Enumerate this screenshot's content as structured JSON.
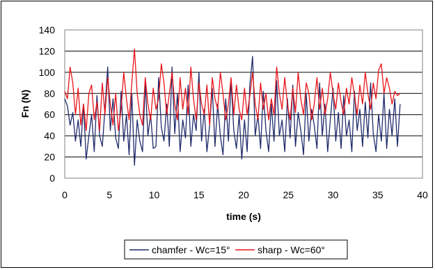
{
  "chart_data": {
    "type": "line",
    "title": "",
    "xlabel": "time (s)",
    "ylabel": "Fn (N)",
    "xlim": [
      0,
      40
    ],
    "ylim": [
      0,
      140
    ],
    "x_ticks": [
      0,
      5,
      10,
      15,
      20,
      25,
      30,
      35,
      40
    ],
    "y_ticks": [
      0,
      20,
      40,
      60,
      80,
      100,
      120,
      140
    ],
    "grid": "horizontal",
    "legend_position": "bottom",
    "series": [
      {
        "name": "chamfer - Wc=15°",
        "color": "#1f2a6b",
        "x": [
          0,
          0.3,
          0.6,
          0.9,
          1.2,
          1.5,
          1.8,
          2.1,
          2.4,
          2.7,
          3.0,
          3.3,
          3.6,
          3.9,
          4.2,
          4.5,
          4.8,
          5.1,
          5.4,
          5.7,
          6.0,
          6.3,
          6.6,
          6.9,
          7.2,
          7.5,
          7.8,
          8.1,
          8.4,
          8.7,
          9.0,
          9.3,
          9.6,
          9.9,
          10.2,
          10.5,
          10.8,
          11.1,
          11.4,
          11.7,
          12.0,
          12.3,
          12.6,
          12.9,
          13.2,
          13.5,
          13.8,
          14.1,
          14.4,
          14.7,
          15.0,
          15.3,
          15.6,
          15.9,
          16.2,
          16.5,
          16.8,
          17.1,
          17.4,
          17.7,
          18.0,
          18.3,
          18.6,
          18.9,
          19.2,
          19.5,
          19.8,
          20.1,
          20.4,
          20.7,
          21.0,
          21.3,
          21.6,
          21.9,
          22.2,
          22.5,
          22.8,
          23.1,
          23.4,
          23.7,
          24.0,
          24.3,
          24.6,
          24.9,
          25.2,
          25.5,
          25.8,
          26.1,
          26.4,
          26.7,
          27.0,
          27.3,
          27.6,
          27.9,
          28.2,
          28.5,
          28.8,
          29.1,
          29.4,
          29.7,
          30.0,
          30.3,
          30.6,
          30.9,
          31.2,
          31.5,
          31.8,
          32.1,
          32.4,
          32.7,
          33.0,
          33.3,
          33.6,
          33.9,
          34.2,
          34.5,
          34.8,
          35.1,
          35.4,
          35.7,
          36.0,
          36.3,
          36.6,
          36.9,
          37.2,
          37.5
        ],
        "y": [
          75,
          68,
          50,
          62,
          35,
          55,
          30,
          70,
          18,
          40,
          60,
          25,
          78,
          40,
          30,
          65,
          105,
          45,
          75,
          38,
          28,
          82,
          35,
          60,
          22,
          80,
          12,
          55,
          35,
          25,
          90,
          40,
          60,
          28,
          30,
          95,
          48,
          35,
          70,
          30,
          105,
          42,
          80,
          25,
          55,
          38,
          88,
          30,
          60,
          45,
          100,
          35,
          65,
          25,
          50,
          85,
          30,
          70,
          40,
          22,
          75,
          35,
          92,
          45,
          28,
          60,
          18,
          55,
          25,
          88,
          115,
          40,
          60,
          28,
          82,
          45,
          25,
          70,
          35,
          92,
          40,
          55,
          25,
          75,
          38,
          88,
          30,
          62,
          45,
          22,
          80,
          35,
          65,
          50,
          28,
          90,
          40,
          70,
          25,
          55,
          85,
          35,
          62,
          28,
          78,
          40,
          55,
          25,
          82,
          45,
          65,
          30,
          72,
          38,
          90,
          42,
          25,
          60,
          35,
          80,
          28,
          65,
          40,
          75,
          30,
          70
        ]
      },
      {
        "name": "sharp - Wc=60°",
        "color": "#e8141a",
        "x": [
          0,
          0.3,
          0.6,
          0.9,
          1.2,
          1.5,
          1.8,
          2.1,
          2.4,
          2.7,
          3.0,
          3.3,
          3.6,
          3.9,
          4.2,
          4.5,
          4.8,
          5.1,
          5.4,
          5.7,
          6.0,
          6.3,
          6.6,
          6.9,
          7.2,
          7.5,
          7.8,
          8.1,
          8.4,
          8.7,
          9.0,
          9.3,
          9.6,
          9.9,
          10.2,
          10.5,
          10.8,
          11.1,
          11.4,
          11.7,
          12.0,
          12.3,
          12.6,
          12.9,
          13.2,
          13.5,
          13.8,
          14.1,
          14.4,
          14.7,
          15.0,
          15.3,
          15.6,
          15.9,
          16.2,
          16.5,
          16.8,
          17.1,
          17.4,
          17.7,
          18.0,
          18.3,
          18.6,
          18.9,
          19.2,
          19.5,
          19.8,
          20.1,
          20.4,
          20.7,
          21.0,
          21.3,
          21.6,
          21.9,
          22.2,
          22.5,
          22.8,
          23.1,
          23.4,
          23.7,
          24.0,
          24.3,
          24.6,
          24.9,
          25.2,
          25.5,
          25.8,
          26.1,
          26.4,
          26.7,
          27.0,
          27.3,
          27.6,
          27.9,
          28.2,
          28.5,
          28.8,
          29.1,
          29.4,
          29.7,
          30.0,
          30.3,
          30.6,
          30.9,
          31.2,
          31.5,
          31.8,
          32.1,
          32.4,
          32.7,
          33.0,
          33.3,
          33.6,
          33.9,
          34.2,
          34.5,
          34.8,
          35.1,
          35.4,
          35.7,
          36.0,
          36.3,
          36.6,
          36.9,
          37.2,
          37.5
        ],
        "y": [
          82,
          75,
          105,
          90,
          60,
          85,
          50,
          70,
          45,
          80,
          88,
          55,
          72,
          45,
          90,
          60,
          95,
          70,
          50,
          80,
          45,
          65,
          100,
          75,
          55,
          90,
          122,
          80,
          60,
          50,
          95,
          70,
          55,
          85,
          65,
          75,
          108,
          90,
          60,
          80,
          100,
          70,
          55,
          95,
          65,
          85,
          60,
          105,
          75,
          55,
          90,
          70,
          60,
          88,
          50,
          95,
          75,
          65,
          100,
          80,
          55,
          70,
          95,
          60,
          88,
          65,
          55,
          85,
          60,
          78,
          100,
          70,
          55,
          90,
          65,
          80,
          55,
          75,
          60,
          105,
          80,
          65,
          95,
          70,
          55,
          85,
          62,
          100,
          75,
          60,
          90,
          80,
          55,
          70,
          95,
          65,
          85,
          60,
          75,
          100,
          80,
          65,
          90,
          72,
          60,
          85,
          70,
          95,
          78,
          60,
          88,
          70,
          100,
          80,
          65,
          90,
          75,
          102,
          108,
          80,
          95,
          85,
          70,
          82,
          78,
          80
        ]
      }
    ]
  }
}
